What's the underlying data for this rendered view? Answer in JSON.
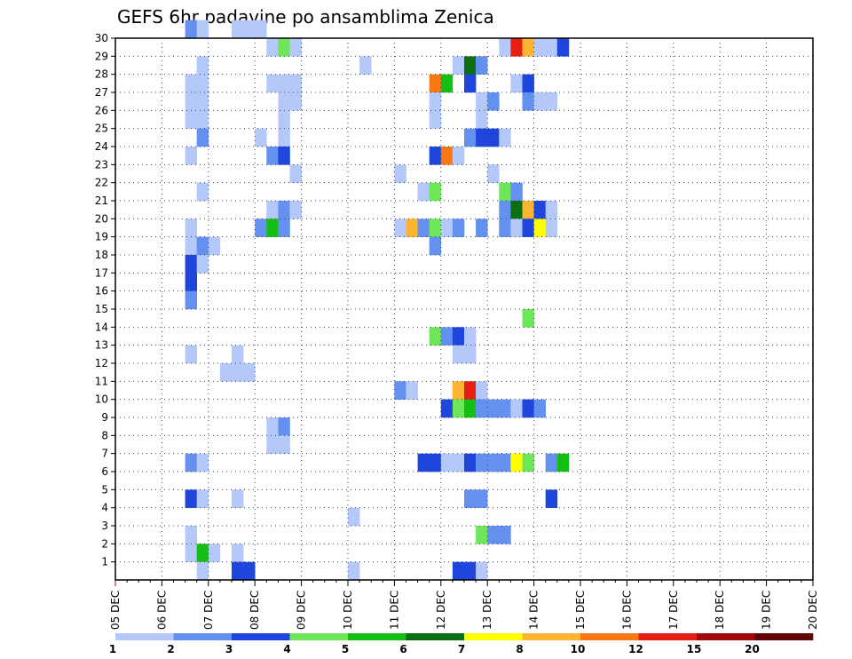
{
  "chart_data": {
    "type": "heatmap",
    "title": "GEFS 6hr padavine po ansamblima Zenica",
    "x_tick_labels": [
      "05 DEC",
      "06 DEC",
      "07 DEC",
      "08 DEC",
      "09 DEC",
      "10 DEC",
      "11 DEC",
      "12 DEC",
      "13 DEC",
      "14 DEC",
      "15 DEC",
      "16 DEC",
      "17 DEC",
      "18 DEC",
      "19 DEC",
      "20 DEC"
    ],
    "y_tick_labels": [
      "1",
      "2",
      "3",
      "4",
      "5",
      "6",
      "7",
      "8",
      "9",
      "10",
      "11",
      "12",
      "13",
      "14",
      "15",
      "16",
      "17",
      "18",
      "19",
      "20",
      "21",
      "22",
      "23",
      "24",
      "25",
      "26",
      "27",
      "28",
      "29",
      "30"
    ],
    "x_range_days": [
      0,
      15
    ],
    "steps_per_day": 4,
    "y_range_members": [
      0,
      30
    ],
    "grid": "dotted",
    "colorbar": {
      "colors": [
        "#b4c8fa",
        "#6491f0",
        "#1e46dc",
        "#6ee65a",
        "#14be14",
        "#0a6e14",
        "#ffff00",
        "#ffb432",
        "#fa7814",
        "#e61e14",
        "#a00a0a",
        "#640505"
      ],
      "tick_labels": [
        "1",
        "2",
        "3",
        "4",
        "5",
        "6",
        "7",
        "8",
        "10",
        "12",
        "15",
        "20"
      ]
    },
    "levels_note": "cells: [time_step_index (6h steps from 05 DEC 00z), ensemble_member_row (0..30), color_level (1-based index into colorbar.colors)]",
    "cells": [
      [
        6,
        30,
        2
      ],
      [
        7,
        30,
        1
      ],
      [
        10,
        30,
        1
      ],
      [
        11,
        30,
        1
      ],
      [
        12,
        30,
        1
      ],
      [
        13,
        29,
        1
      ],
      [
        14,
        29,
        4
      ],
      [
        15,
        29,
        1
      ],
      [
        33,
        29,
        1
      ],
      [
        34,
        29,
        10
      ],
      [
        35,
        29,
        8
      ],
      [
        36,
        29,
        1
      ],
      [
        37,
        29,
        1
      ],
      [
        38,
        29,
        3
      ],
      [
        7,
        28,
        1
      ],
      [
        21,
        28,
        1
      ],
      [
        29,
        28,
        1
      ],
      [
        30,
        28,
        6
      ],
      [
        31,
        28,
        2
      ],
      [
        6,
        27,
        1
      ],
      [
        7,
        27,
        1
      ],
      [
        13,
        27,
        1
      ],
      [
        14,
        27,
        1
      ],
      [
        15,
        27,
        1
      ],
      [
        27,
        27,
        9
      ],
      [
        28,
        27,
        5
      ],
      [
        30,
        27,
        3
      ],
      [
        34,
        27,
        1
      ],
      [
        35,
        27,
        3
      ],
      [
        6,
        26,
        1
      ],
      [
        7,
        26,
        1
      ],
      [
        14,
        26,
        1
      ],
      [
        15,
        26,
        1
      ],
      [
        27,
        26,
        1
      ],
      [
        31,
        26,
        1
      ],
      [
        32,
        26,
        2
      ],
      [
        35,
        26,
        2
      ],
      [
        36,
        26,
        1
      ],
      [
        37,
        26,
        1
      ],
      [
        6,
        25,
        1
      ],
      [
        7,
        25,
        1
      ],
      [
        14,
        25,
        1
      ],
      [
        27,
        25,
        1
      ],
      [
        31,
        25,
        1
      ],
      [
        7,
        24,
        2
      ],
      [
        12,
        24,
        1
      ],
      [
        14,
        24,
        1
      ],
      [
        30,
        24,
        2
      ],
      [
        31,
        24,
        3
      ],
      [
        32,
        24,
        3
      ],
      [
        33,
        24,
        1
      ],
      [
        6,
        23,
        1
      ],
      [
        13,
        23,
        2
      ],
      [
        14,
        23,
        3
      ],
      [
        27,
        23,
        3
      ],
      [
        28,
        23,
        9
      ],
      [
        29,
        23,
        1
      ],
      [
        15,
        22,
        1
      ],
      [
        24,
        22,
        1
      ],
      [
        32,
        22,
        1
      ],
      [
        7,
        21,
        1
      ],
      [
        26,
        21,
        1
      ],
      [
        27,
        21,
        4
      ],
      [
        33,
        21,
        4
      ],
      [
        34,
        21,
        2
      ],
      [
        13,
        20,
        1
      ],
      [
        14,
        20,
        2
      ],
      [
        15,
        20,
        1
      ],
      [
        33,
        20,
        2
      ],
      [
        34,
        20,
        6
      ],
      [
        35,
        20,
        8
      ],
      [
        36,
        20,
        3
      ],
      [
        37,
        20,
        1
      ],
      [
        6,
        19,
        1
      ],
      [
        12,
        19,
        2
      ],
      [
        13,
        19,
        5
      ],
      [
        14,
        19,
        2
      ],
      [
        24,
        19,
        1
      ],
      [
        25,
        19,
        8
      ],
      [
        26,
        19,
        2
      ],
      [
        27,
        19,
        4
      ],
      [
        28,
        19,
        1
      ],
      [
        29,
        19,
        2
      ],
      [
        31,
        19,
        2
      ],
      [
        33,
        19,
        2
      ],
      [
        34,
        19,
        1
      ],
      [
        35,
        19,
        3
      ],
      [
        36,
        19,
        7
      ],
      [
        37,
        19,
        1
      ],
      [
        6,
        18,
        1
      ],
      [
        7,
        18,
        2
      ],
      [
        8,
        18,
        1
      ],
      [
        27,
        18,
        2
      ],
      [
        6,
        17,
        3
      ],
      [
        7,
        17,
        1
      ],
      [
        6,
        16,
        3
      ],
      [
        6,
        15,
        2
      ],
      [
        35,
        14,
        4
      ],
      [
        27,
        13,
        4
      ],
      [
        28,
        13,
        2
      ],
      [
        29,
        13,
        3
      ],
      [
        30,
        13,
        1
      ],
      [
        6,
        12,
        1
      ],
      [
        10,
        12,
        1
      ],
      [
        29,
        12,
        1
      ],
      [
        30,
        12,
        1
      ],
      [
        9,
        11,
        1
      ],
      [
        10,
        11,
        1
      ],
      [
        11,
        11,
        1
      ],
      [
        24,
        10,
        2
      ],
      [
        25,
        10,
        1
      ],
      [
        29,
        10,
        8
      ],
      [
        30,
        10,
        10
      ],
      [
        31,
        10,
        1
      ],
      [
        28,
        9,
        3
      ],
      [
        29,
        9,
        4
      ],
      [
        30,
        9,
        5
      ],
      [
        31,
        9,
        2
      ],
      [
        32,
        9,
        2
      ],
      [
        33,
        9,
        2
      ],
      [
        34,
        9,
        1
      ],
      [
        35,
        9,
        3
      ],
      [
        36,
        9,
        2
      ],
      [
        13,
        8,
        1
      ],
      [
        14,
        8,
        2
      ],
      [
        13,
        7,
        1
      ],
      [
        14,
        7,
        1
      ],
      [
        6,
        6,
        2
      ],
      [
        7,
        6,
        1
      ],
      [
        26,
        6,
        3
      ],
      [
        27,
        6,
        3
      ],
      [
        28,
        6,
        1
      ],
      [
        29,
        6,
        1
      ],
      [
        30,
        6,
        3
      ],
      [
        31,
        6,
        2
      ],
      [
        32,
        6,
        2
      ],
      [
        33,
        6,
        2
      ],
      [
        34,
        6,
        7
      ],
      [
        35,
        6,
        4
      ],
      [
        37,
        6,
        2
      ],
      [
        38,
        6,
        5
      ],
      [
        6,
        4,
        3
      ],
      [
        7,
        4,
        1
      ],
      [
        10,
        4,
        1
      ],
      [
        30,
        4,
        2
      ],
      [
        31,
        4,
        2
      ],
      [
        37,
        4,
        3
      ],
      [
        20,
        3,
        1
      ],
      [
        6,
        2,
        1
      ],
      [
        31,
        2,
        4
      ],
      [
        32,
        2,
        2
      ],
      [
        33,
        2,
        2
      ],
      [
        6,
        1,
        1
      ],
      [
        7,
        1,
        5
      ],
      [
        8,
        1,
        1
      ],
      [
        10,
        1,
        1
      ],
      [
        7,
        0,
        1
      ],
      [
        10,
        0,
        3
      ],
      [
        11,
        0,
        3
      ],
      [
        20,
        0,
        1
      ],
      [
        29,
        0,
        3
      ],
      [
        30,
        0,
        3
      ],
      [
        31,
        0,
        1
      ]
    ]
  }
}
